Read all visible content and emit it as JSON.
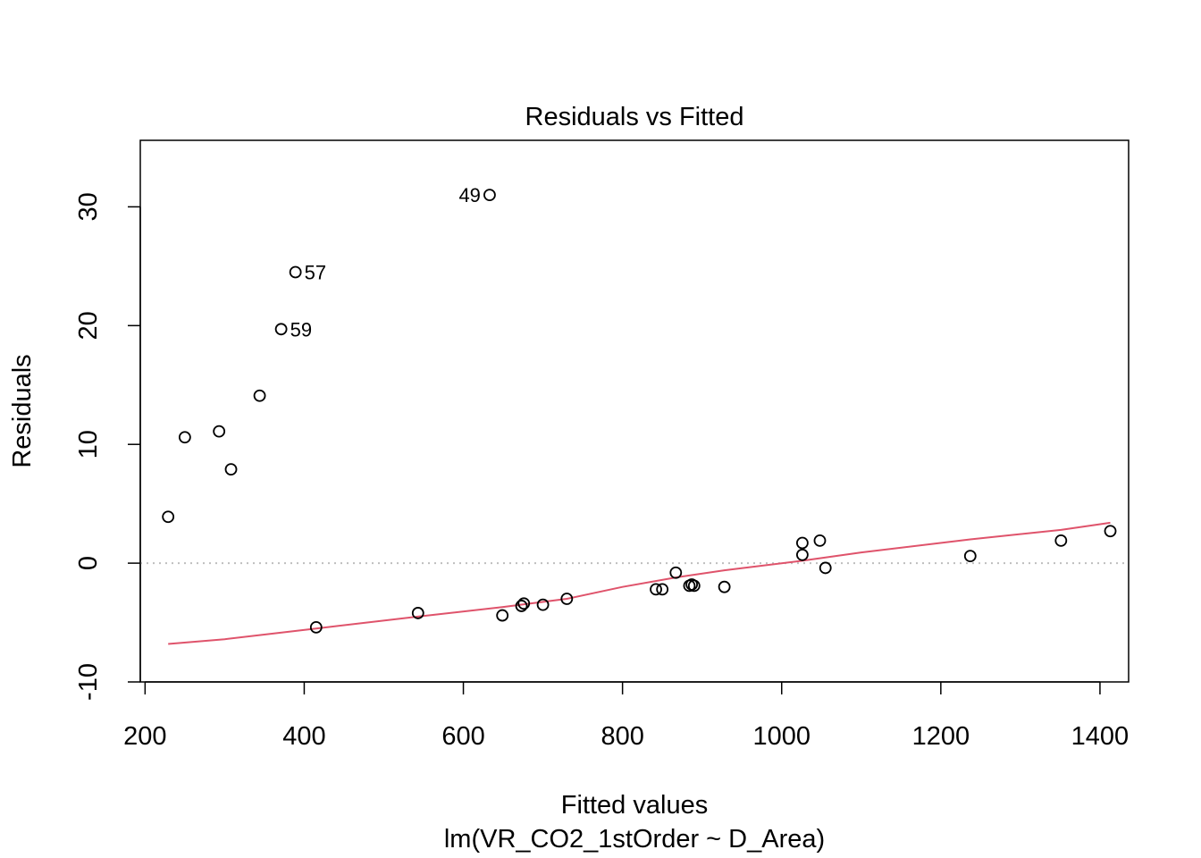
{
  "chart_data": {
    "type": "scatter",
    "title": "Residuals vs Fitted",
    "xlabel": "Fitted values",
    "subtitle": "lm(VR_CO2_1stOrder ~ D_Area)",
    "ylabel": "Residuals",
    "xlim": [
      194,
      1436
    ],
    "ylim": [
      -10,
      35.6
    ],
    "x_ticks": [
      200,
      400,
      600,
      800,
      1000,
      1200,
      1400
    ],
    "x_tick_labels": [
      "200",
      "400",
      "600",
      "800",
      "1000",
      "1200",
      "1400"
    ],
    "y_ticks": [
      -10,
      0,
      10,
      20,
      30
    ],
    "y_tick_labels": [
      "-10",
      "0",
      "10",
      "20",
      "30"
    ],
    "points": [
      {
        "x": 229,
        "y": 3.9
      },
      {
        "x": 250,
        "y": 10.6
      },
      {
        "x": 293,
        "y": 11.1
      },
      {
        "x": 308,
        "y": 7.9
      },
      {
        "x": 344,
        "y": 14.1
      },
      {
        "x": 371,
        "y": 19.7,
        "label": "59"
      },
      {
        "x": 389,
        "y": 24.5,
        "label": "57"
      },
      {
        "x": 415,
        "y": -5.4
      },
      {
        "x": 543,
        "y": -4.2
      },
      {
        "x": 633,
        "y": 31.0,
        "label": "49"
      },
      {
        "x": 649,
        "y": -4.4
      },
      {
        "x": 673,
        "y": -3.6
      },
      {
        "x": 676,
        "y": -3.4
      },
      {
        "x": 700,
        "y": -3.5
      },
      {
        "x": 730,
        "y": -3.0
      },
      {
        "x": 842,
        "y": -2.2
      },
      {
        "x": 850,
        "y": -2.2
      },
      {
        "x": 867,
        "y": -0.8
      },
      {
        "x": 884,
        "y": -1.9
      },
      {
        "x": 887,
        "y": -1.8
      },
      {
        "x": 890,
        "y": -1.9
      },
      {
        "x": 928,
        "y": -2.0
      },
      {
        "x": 1026,
        "y": 1.7
      },
      {
        "x": 1026,
        "y": 0.7
      },
      {
        "x": 1048,
        "y": 1.9
      },
      {
        "x": 1055,
        "y": -0.4
      },
      {
        "x": 1237,
        "y": 0.6
      },
      {
        "x": 1351,
        "y": 1.9
      },
      {
        "x": 1413,
        "y": 2.7
      }
    ],
    "smooth_line": {
      "color": "#DF536B",
      "points": [
        [
          229,
          -6.8
        ],
        [
          300,
          -6.4
        ],
        [
          415,
          -5.5
        ],
        [
          543,
          -4.5
        ],
        [
          649,
          -3.7
        ],
        [
          730,
          -3.0
        ],
        [
          800,
          -2.0
        ],
        [
          867,
          -1.2
        ],
        [
          928,
          -0.6
        ],
        [
          1026,
          0.2
        ],
        [
          1100,
          0.9
        ],
        [
          1237,
          2.0
        ],
        [
          1351,
          2.8
        ],
        [
          1413,
          3.4
        ]
      ]
    },
    "zero_line": {
      "y": 0,
      "color": "#BEBEBE",
      "style": "dotted"
    },
    "grid": false,
    "point_color": "#000000"
  }
}
